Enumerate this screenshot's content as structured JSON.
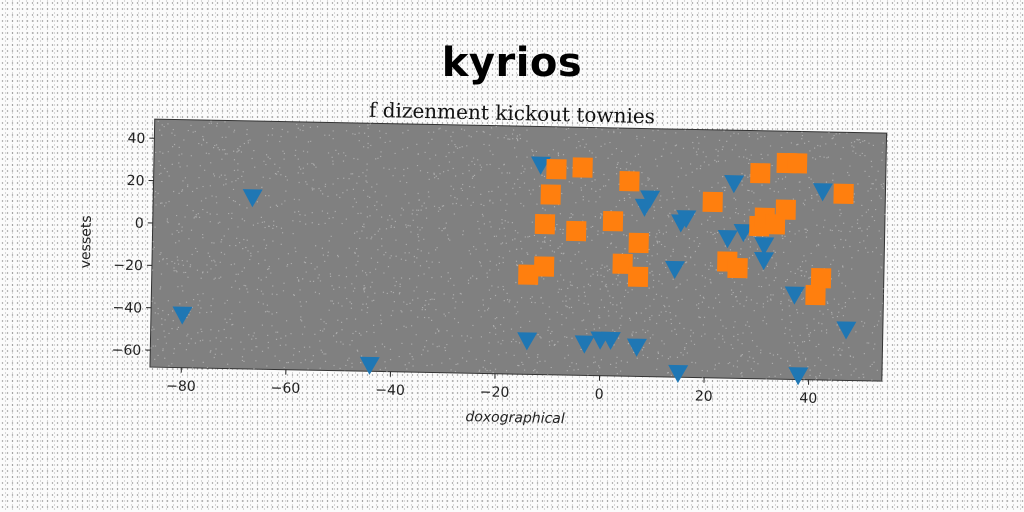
{
  "header": {
    "title": "kyrios",
    "subtitle": "f dizenment kickout townies"
  },
  "chart_data": {
    "type": "scatter",
    "title": "kyrios",
    "subtitle": "f dizenment kickout townies",
    "xlabel": "doxographical",
    "ylabel": "vessets",
    "xlim": [
      -86,
      54
    ],
    "ylim": [
      -68,
      49
    ],
    "x_ticks": [
      -80,
      -60,
      -40,
      -20,
      0,
      20,
      40
    ],
    "y_ticks": [
      40,
      20,
      0,
      -20,
      -40,
      -60
    ],
    "grid": false,
    "legend": "none",
    "plot_background": "#808080",
    "series": [
      {
        "marker": "triangle-down",
        "color": "#1f77b4",
        "points": [
          [
            -67,
            13
          ],
          [
            -80,
            -43
          ],
          [
            -44,
            -65
          ],
          [
            -14,
            -52
          ],
          [
            -12,
            31
          ],
          [
            -3,
            -53
          ],
          [
            0,
            -51
          ],
          [
            2,
            -51
          ],
          [
            7,
            -54
          ],
          [
            8,
            12
          ],
          [
            9,
            16
          ],
          [
            14,
            -17
          ],
          [
            15,
            5
          ],
          [
            15,
            -66
          ],
          [
            16,
            7
          ],
          [
            24,
            -2
          ],
          [
            25,
            24
          ],
          [
            27,
            1
          ],
          [
            31,
            -12
          ],
          [
            31,
            -5
          ],
          [
            37,
            -28
          ],
          [
            38,
            -66
          ],
          [
            42,
            21
          ],
          [
            47,
            -44
          ]
        ]
      },
      {
        "marker": "square",
        "color": "#ff7f0e",
        "points": [
          [
            -14,
            -21
          ],
          [
            -11,
            3
          ],
          [
            -11,
            -17
          ],
          [
            -10,
            17
          ],
          [
            -9,
            29
          ],
          [
            -5,
            0
          ],
          [
            -4,
            30
          ],
          [
            2,
            5
          ],
          [
            4,
            -15
          ],
          [
            5,
            24
          ],
          [
            7,
            -5
          ],
          [
            7,
            -21
          ],
          [
            21,
            15
          ],
          [
            24,
            -13
          ],
          [
            26,
            -16
          ],
          [
            30,
            29
          ],
          [
            30,
            4
          ],
          [
            31,
            8
          ],
          [
            33,
            5
          ],
          [
            35,
            12
          ],
          [
            35,
            34
          ],
          [
            37,
            34
          ],
          [
            41,
            -28
          ],
          [
            42,
            -20
          ],
          [
            46,
            20
          ]
        ]
      }
    ]
  }
}
